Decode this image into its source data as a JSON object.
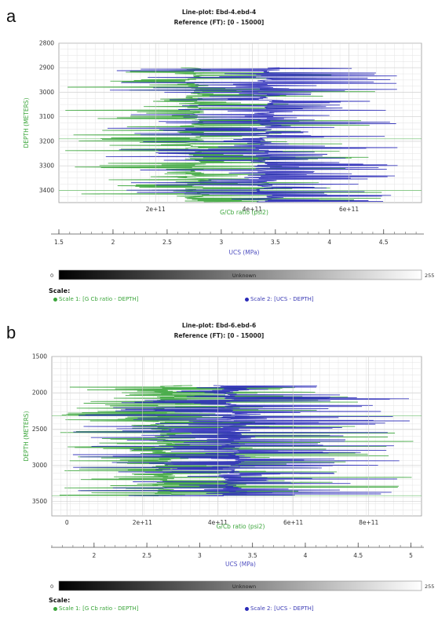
{
  "panels": [
    {
      "letter": "a",
      "title": "Line-plot: Ebd-4.ebd-4",
      "reference": "Reference (FT): [0 - 15000]",
      "y_axis_label": "DEPTH (METERS)",
      "x_axis_label": "G/Cb ratio (psi2)",
      "x2_axis_label": "UCS (MPa)",
      "colorbar": {
        "min": "0",
        "max": "255",
        "label": "Unknown"
      },
      "scale": {
        "header": "Scale:",
        "scale1": "Scale 1:  [G Cb ratio - DEPTH]",
        "scale2": "Scale 2:  [UCS - DEPTH]"
      }
    },
    {
      "letter": "b",
      "title": "Line-plot: Ebd-6.ebd-6",
      "reference": "Reference (FT): [0 - 15000]",
      "y_axis_label": "DEPTH (METERS)",
      "x_axis_label": "G/Cb ratio (psi2)",
      "x2_axis_label": "UCS (MPa)",
      "colorbar": {
        "min": "0",
        "max": "255",
        "label": "Unknown"
      },
      "scale": {
        "header": "Scale:",
        "scale1": "Scale 1:  [G Cb ratio - DEPTH]",
        "scale2": "Scale 2:  [UCS - DEPTH]"
      }
    }
  ],
  "chart_data": [
    {
      "type": "line",
      "y_axis": {
        "label": "DEPTH (METERS)",
        "range": [
          2800,
          3450
        ],
        "ticks": [
          2800,
          2900,
          3000,
          3100,
          3200,
          3300,
          3400
        ]
      },
      "x_axis_primary": {
        "label": "G/Cb ratio (psi2)",
        "range": [
          0,
          750000000000.0
        ],
        "ticks": [
          "2e+11",
          "4e+11",
          "6e+11"
        ],
        "tick_values": [
          200000000000.0,
          400000000000.0,
          600000000000.0
        ]
      },
      "x_axis_secondary": {
        "label": "UCS (MPa)",
        "range": [
          1.5,
          4.85
        ],
        "ticks": [
          "1.5",
          "2",
          "2.5",
          "3",
          "3.5",
          "4",
          "4.5"
        ],
        "tick_values": [
          1.5,
          2,
          2.5,
          3,
          3.5,
          4,
          4.5
        ]
      },
      "grid": true,
      "series": [
        {
          "name": "Scale 1:  [G Cb ratio - DEPTH]",
          "color": "#3aa53a",
          "depth_range": [
            2900,
            3445
          ],
          "value_range": [
            10000000000.0,
            680000000000.0
          ],
          "center": 280000000000.0,
          "n": 180,
          "seed": 11
        },
        {
          "name": "Scale 2:  [UCS - DEPTH]",
          "color": "#2a2ab8",
          "depth_range": [
            2900,
            3445
          ],
          "value_range": [
            1.9,
            4.7
          ],
          "center": 3.4,
          "n": 180,
          "seed": 29
        }
      ],
      "reference_lines": [
        3190,
        3400
      ]
    },
    {
      "type": "line",
      "y_axis": {
        "label": "DEPTH (METERS)",
        "range": [
          1500,
          3700
        ],
        "ticks": [
          1500,
          2000,
          2500,
          3000,
          3500
        ]
      },
      "x_axis_primary": {
        "label": "G/Cb ratio (psi2)",
        "range": [
          -40000000000.0,
          940000000000.0
        ],
        "ticks": [
          "0",
          "2e+11",
          "4e+11",
          "6e+11",
          "8e+11"
        ],
        "tick_values": [
          0,
          200000000000.0,
          400000000000.0,
          600000000000.0,
          800000000000.0
        ]
      },
      "x_axis_secondary": {
        "label": "UCS (MPa)",
        "range": [
          1.6,
          5.1
        ],
        "ticks": [
          "2",
          "2.5",
          "3",
          "3.5",
          "4",
          "4.5",
          "5"
        ],
        "tick_values": [
          2,
          2.5,
          3,
          3.5,
          4,
          4.5,
          5
        ]
      },
      "grid": true,
      "series": [
        {
          "name": "Scale 1:  [G Cb ratio - DEPTH]",
          "color": "#3aa53a",
          "depth_range": [
            1900,
            3420
          ],
          "value_range": [
            -20000000000.0,
            920000000000.0
          ],
          "center": 260000000000.0,
          "n": 200,
          "seed": 41
        },
        {
          "name": "Scale 2:  [UCS - DEPTH]",
          "color": "#2a2ab8",
          "depth_range": [
            1900,
            3420
          ],
          "value_range": [
            1.8,
            5.0
          ],
          "center": 3.3,
          "n": 200,
          "seed": 53
        }
      ],
      "reference_lines": [
        2320,
        3420
      ]
    }
  ]
}
